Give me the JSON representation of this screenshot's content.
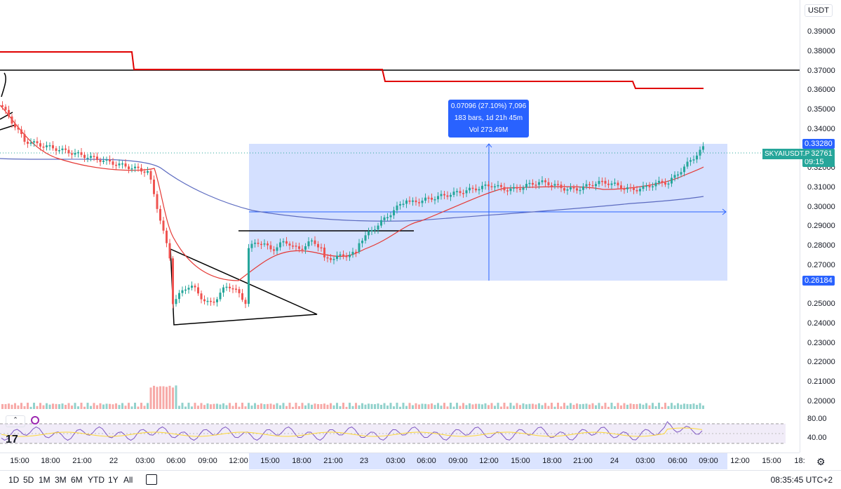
{
  "currency": "USDT",
  "symbol_label": "SKYAIUSDT.P",
  "current_price": "0.32761",
  "countdown": "09:15",
  "range_top_price": "0.33280",
  "range_bottom_price": "0.26184",
  "measure": {
    "line1": "0.07096 (27.10%) 7,096",
    "line2": "183 bars, 1d 21h 45m",
    "line3": "Vol 273.49M"
  },
  "price_ticks": [
    "0.39000",
    "0.38000",
    "0.37000",
    "0.36000",
    "0.35000",
    "0.34000",
    "0.32000",
    "0.31000",
    "0.30000",
    "0.29000",
    "0.28000",
    "0.27000",
    "0.25000",
    "0.24000",
    "0.23000",
    "0.22000",
    "0.21000",
    "0.20000"
  ],
  "rsi_ticks": [
    "80.00",
    "40.00"
  ],
  "time_ticks": [
    "15:00",
    "18:00",
    "21:00",
    "22",
    "03:00",
    "06:00",
    "09:00",
    "12:00",
    "15:00",
    "18:00",
    "21:00",
    "23",
    "03:00",
    "06:00",
    "09:00",
    "12:00",
    "15:00",
    "18:00",
    "21:00",
    "24",
    "03:00",
    "06:00",
    "09:00",
    "12:00",
    "15:00",
    "18:"
  ],
  "ranges": [
    "1D",
    "5D",
    "1M",
    "3M",
    "6M",
    "YTD",
    "1Y",
    "All"
  ],
  "clock": "08:35:45 UTC+2",
  "indicator_toggle": "⌃",
  "colors": {
    "up": "#26a69a",
    "down": "#ef5350",
    "accent": "#2962ff",
    "ema": "#e53935",
    "ma": "#5c6bc0"
  },
  "icons": {
    "compare": "compare-icon",
    "settings": "gear-icon",
    "logo": "tradingview-logo"
  }
}
